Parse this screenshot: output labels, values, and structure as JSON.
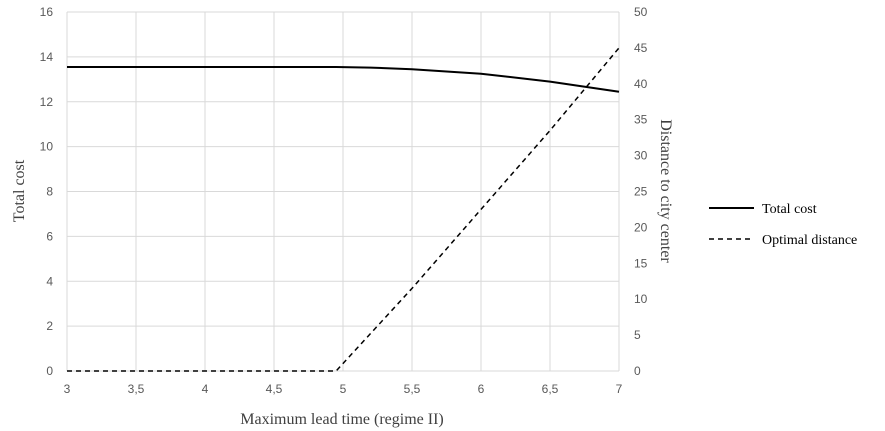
{
  "chart_data": {
    "type": "line",
    "xlabel": "Maximum lead time (regime II)",
    "ylabel": "Total cost",
    "y2label": "Distance to city center",
    "xlim": [
      3,
      7
    ],
    "ylim": [
      0,
      16
    ],
    "y2lim": [
      0,
      50
    ],
    "x_ticks": [
      "3",
      "3,5",
      "4",
      "4,5",
      "5",
      "5,5",
      "6",
      "6,5",
      "7"
    ],
    "y_ticks": [
      "0",
      "2",
      "4",
      "6",
      "8",
      "10",
      "12",
      "14",
      "16"
    ],
    "y2_ticks": [
      "0",
      "5",
      "10",
      "15",
      "20",
      "25",
      "30",
      "35",
      "40",
      "45",
      "50"
    ],
    "grid": true,
    "legend_position": "right",
    "series": [
      {
        "name": "Total cost",
        "axis": "left",
        "line_style": "solid",
        "color": "#000000",
        "x": [
          3,
          3.5,
          4,
          4.5,
          4.95,
          5.2,
          5.5,
          6,
          6.5,
          7
        ],
        "values": [
          13.55,
          13.55,
          13.55,
          13.55,
          13.55,
          13.52,
          13.45,
          13.25,
          12.9,
          12.45
        ]
      },
      {
        "name": "Optimal distance",
        "axis": "right",
        "line_style": "dashed",
        "color": "#000000",
        "x": [
          3,
          3.5,
          4,
          4.5,
          4.95,
          5.5,
          6,
          6.5,
          7
        ],
        "values": [
          0,
          0,
          0,
          0,
          0,
          11.5,
          22.5,
          33.5,
          45
        ]
      }
    ]
  }
}
